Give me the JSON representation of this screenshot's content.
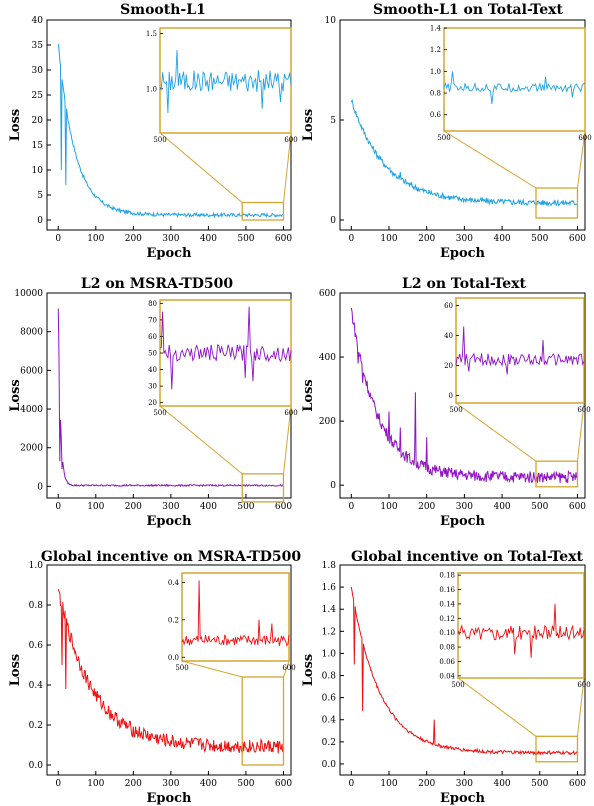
{
  "colors": {
    "blue": "#1fa3e6",
    "purple": "#9013c4",
    "red": "#ee1111",
    "zoom": "#d4a531"
  },
  "chart_data": [
    {
      "type": "line",
      "title": "Smooth-L1",
      "xlabel": "Epoch",
      "ylabel": "Loss",
      "xlim": [
        -30,
        620
      ],
      "ylim": [
        -2,
        40
      ],
      "xticks": [
        0,
        100,
        200,
        300,
        400,
        500,
        600
      ],
      "xtick_labels": [
        "0",
        "100",
        "200",
        "300",
        "400",
        "500",
        "600"
      ],
      "yticks": [
        0,
        5,
        10,
        15,
        20,
        25,
        30,
        35,
        40
      ],
      "ytick_labels": [
        "0",
        "5",
        "10",
        "15",
        "20",
        "25",
        "30",
        "35",
        "40"
      ],
      "color": "blue",
      "series": [
        {
          "start": 35.2,
          "plateau": 1.0,
          "decay": 45,
          "noise": 0.35,
          "spikes": [
            [
              0,
              35.2
            ],
            [
              8,
              10
            ],
            [
              20,
              7
            ],
            [
              25,
              6
            ]
          ]
        }
      ],
      "zoom": {
        "x": [
          490,
          600
        ],
        "y": [
          0,
          3.5
        ]
      },
      "inset": {
        "xlim": [
          500,
          600
        ],
        "ylim": [
          0.6,
          1.55
        ],
        "xticks": [
          500,
          600
        ],
        "xtick_labels": [
          "500",
          "600"
        ],
        "yticks": [
          1.0,
          1.5
        ],
        "ytick_labels": [
          "1.0",
          "1.5"
        ],
        "series": {
          "mean": 1.07,
          "noise": 0.1,
          "spikes": [
            [
              513,
              1.35
            ],
            [
              506,
              0.78
            ],
            [
              578,
              0.82
            ],
            [
              592,
              0.88
            ]
          ]
        }
      }
    },
    {
      "type": "line",
      "title": "Smooth-L1 on Total-Text",
      "xlabel": "Epoch",
      "ylabel": "Loss",
      "xlim": [
        -30,
        620
      ],
      "ylim": [
        -0.5,
        10
      ],
      "xticks": [
        0,
        100,
        200,
        300,
        400,
        500,
        600
      ],
      "xtick_labels": [
        "0",
        "100",
        "200",
        "300",
        "400",
        "500",
        "600"
      ],
      "yticks": [
        0,
        5,
        10
      ],
      "ytick_labels": [
        "0",
        "5",
        "10"
      ],
      "color": "blue",
      "series": [
        {
          "start": 6.0,
          "plateau": 0.85,
          "decay": 90,
          "noise": 0.15,
          "spikes": [
            [
              165,
              3.5
            ],
            [
              130,
              2.4
            ],
            [
              100,
              2.6
            ],
            [
              15,
              4.2
            ]
          ]
        }
      ],
      "zoom": {
        "x": [
          490,
          600
        ],
        "y": [
          0.1,
          1.6
        ]
      },
      "inset": {
        "xlim": [
          500,
          600
        ],
        "ylim": [
          0.45,
          1.4
        ],
        "xticks": [
          500,
          600
        ],
        "xtick_labels": [
          "500",
          "600"
        ],
        "yticks": [
          0.6,
          0.8,
          1.0,
          1.2,
          1.4
        ],
        "ytick_labels": [
          "0.6",
          "0.8",
          "1.0",
          "1.2",
          "1.4"
        ],
        "series": {
          "mean": 0.85,
          "noise": 0.04,
          "spikes": [
            [
              506,
              1.0
            ],
            [
              534,
              0.7
            ],
            [
              572,
              0.95
            ],
            [
              591,
              0.76
            ]
          ]
        }
      }
    },
    {
      "type": "line",
      "title": "L2 on MSRA-TD500",
      "xlabel": "Epoch",
      "ylabel": "Loss",
      "xlim": [
        -30,
        620
      ],
      "ylim": [
        -600,
        10000
      ],
      "xticks": [
        0,
        100,
        200,
        300,
        400,
        500,
        600
      ],
      "xtick_labels": [
        "0",
        "100",
        "200",
        "300",
        "400",
        "500",
        "600"
      ],
      "yticks": [
        0,
        2000,
        4000,
        6000,
        8000,
        10000
      ],
      "ytick_labels": [
        "0",
        "2000",
        "4000",
        "6000",
        "8000",
        "10000"
      ],
      "color": "purple",
      "series": [
        {
          "start": 9200,
          "plateau": 50,
          "decay": 6,
          "noise": 40,
          "spikes": [
            [
              0,
              9200
            ],
            [
              4,
              1300
            ],
            [
              10,
              900
            ]
          ]
        }
      ],
      "zoom": {
        "x": [
          490,
          600
        ],
        "y": [
          -800,
          650
        ]
      },
      "inset": {
        "xlim": [
          500,
          600
        ],
        "ylim": [
          18,
          82
        ],
        "xticks": [
          500,
          600
        ],
        "xtick_labels": [
          "500",
          "600"
        ],
        "yticks": [
          20,
          30,
          40,
          50,
          60,
          70,
          80
        ],
        "ytick_labels": [
          "20",
          "30",
          "40",
          "50",
          "60",
          "70",
          "80"
        ],
        "series": {
          "mean": 50,
          "noise": 5,
          "spikes": [
            [
              502,
              75
            ],
            [
              509,
              28
            ],
            [
              568,
              78
            ],
            [
              565,
              35
            ],
            [
              571,
              33
            ]
          ]
        }
      }
    },
    {
      "type": "line",
      "title": "L2 on Total-Text",
      "xlabel": "Epoch",
      "ylabel": "Loss",
      "xlim": [
        -30,
        620
      ],
      "ylim": [
        -40,
        600
      ],
      "xticks": [
        0,
        100,
        200,
        300,
        400,
        500,
        600
      ],
      "xtick_labels": [
        "0",
        "100",
        "200",
        "300",
        "400",
        "500",
        "600"
      ],
      "yticks": [
        0,
        200,
        400,
        600
      ],
      "ytick_labels": [
        "0",
        "200",
        "400",
        "600"
      ],
      "color": "purple",
      "series": [
        {
          "start": 550,
          "plateau": 25,
          "decay": 70,
          "noise": 18,
          "spikes": [
            [
              5,
              550
            ],
            [
              18,
              380
            ],
            [
              30,
              320
            ],
            [
              100,
              230
            ],
            [
              170,
              290
            ],
            [
              130,
              180
            ],
            [
              200,
              150
            ]
          ]
        }
      ],
      "zoom": {
        "x": [
          490,
          600
        ],
        "y": [
          -5,
          75
        ]
      },
      "inset": {
        "xlim": [
          500,
          600
        ],
        "ylim": [
          -5,
          65
        ],
        "xticks": [
          500,
          600
        ],
        "xtick_labels": [
          "500",
          "600"
        ],
        "yticks": [
          0,
          20,
          40,
          60
        ],
        "ytick_labels": [
          "0",
          "20",
          "40",
          "60"
        ],
        "series": {
          "mean": 24,
          "noise": 4,
          "spikes": [
            [
              506,
              46
            ],
            [
              510,
              16
            ],
            [
              568,
              37
            ],
            [
              540,
              14
            ]
          ]
        }
      }
    },
    {
      "type": "line",
      "title": "Global incentive on MSRA-TD500",
      "xlabel": "Epoch",
      "ylabel": "Loss",
      "xlim": [
        -30,
        620
      ],
      "ylim": [
        -0.05,
        1.0
      ],
      "xticks": [
        0,
        100,
        200,
        300,
        400,
        500,
        600
      ],
      "xtick_labels": [
        "0",
        "100",
        "200",
        "300",
        "400",
        "500",
        "600"
      ],
      "yticks": [
        0.0,
        0.2,
        0.4,
        0.6,
        0.8,
        1.0
      ],
      "ytick_labels": [
        "0.0",
        "0.2",
        "0.4",
        "0.6",
        "0.8",
        "1.0"
      ],
      "color": "red",
      "series": [
        {
          "start": 0.88,
          "plateau": 0.09,
          "decay": 90,
          "noise": 0.035,
          "spikes": [
            [
              0,
              0.88
            ],
            [
              10,
              0.5
            ],
            [
              385,
              0.35
            ],
            [
              515,
              0.42
            ],
            [
              395,
              0.3
            ],
            [
              20,
              0.38
            ]
          ]
        }
      ],
      "zoom": {
        "x": [
          490,
          600
        ],
        "y": [
          0.0,
          0.44
        ]
      },
      "inset": {
        "xlim": [
          500,
          600
        ],
        "ylim": [
          -0.02,
          0.45
        ],
        "xticks": [
          500,
          600
        ],
        "xtick_labels": [
          "500",
          "600"
        ],
        "yticks": [
          0.0,
          0.2,
          0.4
        ],
        "ytick_labels": [
          "0.0",
          "0.2",
          "0.4"
        ],
        "series": {
          "mean": 0.09,
          "noise": 0.03,
          "spikes": [
            [
              516,
              0.41
            ],
            [
              572,
              0.2
            ],
            [
              584,
              0.18
            ]
          ]
        }
      }
    },
    {
      "type": "line",
      "title": "Global incentive on Total-Text",
      "xlabel": "Epoch",
      "ylabel": "Loss",
      "xlim": [
        -30,
        620
      ],
      "ylim": [
        -0.1,
        1.8
      ],
      "xticks": [
        0,
        100,
        200,
        300,
        400,
        500,
        600
      ],
      "xtick_labels": [
        "0",
        "100",
        "200",
        "300",
        "400",
        "500",
        "600"
      ],
      "yticks": [
        0.0,
        0.2,
        0.4,
        0.6,
        0.8,
        1.0,
        1.2,
        1.4,
        1.6,
        1.8
      ],
      "ytick_labels": [
        "0.0",
        "0.2",
        "0.4",
        "0.6",
        "0.8",
        "1.0",
        "1.2",
        "1.4",
        "1.6",
        "1.8"
      ],
      "color": "red",
      "series": [
        {
          "start": 1.6,
          "plateau": 0.1,
          "decay": 75,
          "noise": 0.015,
          "spikes": [
            [
              0,
              1.6
            ],
            [
              8,
              0.9
            ],
            [
              220,
              0.4
            ],
            [
              30,
              0.48
            ]
          ]
        }
      ],
      "zoom": {
        "x": [
          490,
          600
        ],
        "y": [
          0.02,
          0.25
        ]
      },
      "inset": {
        "xlim": [
          500,
          600
        ],
        "ylim": [
          0.037,
          0.183
        ],
        "xticks": [
          500,
          600
        ],
        "xtick_labels": [
          "500",
          "600"
        ],
        "yticks": [
          0.04,
          0.06,
          0.08,
          0.1,
          0.12,
          0.14,
          0.16,
          0.18
        ],
        "ytick_labels": [
          "0.04",
          "0.06",
          "0.08",
          "0.10",
          "0.12",
          "0.14",
          "0.16",
          "0.18"
        ],
        "series": {
          "mean": 0.1,
          "noise": 0.01,
          "spikes": [
            [
              577,
              0.14
            ],
            [
              558,
              0.065
            ],
            [
              545,
              0.07
            ]
          ]
        }
      }
    }
  ]
}
